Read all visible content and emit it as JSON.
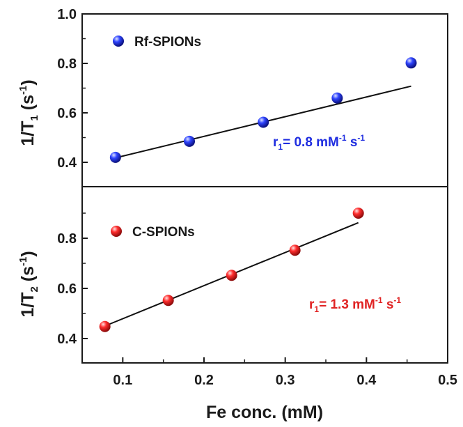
{
  "chart_data": [
    {
      "type": "scatter",
      "panel": "top",
      "xlim": [
        0.05,
        0.5
      ],
      "ylim": [
        0.35,
        1.0
      ],
      "yticks": [
        "0.4",
        "0.6",
        "0.8",
        "1.0"
      ],
      "yticks_val": [
        0.4,
        0.6,
        0.8,
        1.0
      ],
      "ylabel_main": "1/T",
      "ylabel_sub": "1",
      "ylabel_unit": " (s",
      "ylabel_exp": "-1",
      "ylabel_close": ")",
      "series": [
        {
          "name": "Rf-SPIONs",
          "color": "#1f2de0",
          "x": [
            0.091,
            0.182,
            0.273,
            0.364,
            0.455
          ],
          "y": [
            0.42,
            0.485,
            0.562,
            0.66,
            0.802
          ]
        }
      ],
      "fit": {
        "x": [
          0.091,
          0.455
        ],
        "y": [
          0.418,
          0.708
        ]
      },
      "annotation": {
        "r": "r",
        "sub": "1",
        "value": "= 0.8 mM",
        "exp": "-1",
        "unit": " s",
        "exp2": "-1",
        "color": "#1f2de0"
      }
    },
    {
      "type": "scatter",
      "panel": "bottom",
      "xlim": [
        0.05,
        0.5
      ],
      "ylim": [
        0.35,
        1.0
      ],
      "yticks": [
        "0.4",
        "0.6",
        "0.8"
      ],
      "yticks_val": [
        0.4,
        0.6,
        0.8
      ],
      "xticks": [
        "0.1",
        "0.2",
        "0.3",
        "0.4",
        "0.5"
      ],
      "xticks_val": [
        0.1,
        0.2,
        0.3,
        0.4,
        0.5
      ],
      "xlabel": "Fe conc. (mM)",
      "ylabel_main": "1/T",
      "ylabel_sub": "2",
      "ylabel_unit": " (s",
      "ylabel_exp": "-1",
      "ylabel_close": ")",
      "series": [
        {
          "name": "C-SPIONs",
          "color": "#e02222",
          "x": [
            0.078,
            0.156,
            0.234,
            0.312,
            0.39
          ],
          "y": [
            0.448,
            0.552,
            0.652,
            0.752,
            0.9
          ]
        }
      ],
      "fit": {
        "x": [
          0.078,
          0.39
        ],
        "y": [
          0.45,
          0.862
        ]
      },
      "annotation": {
        "r": "r",
        "sub": "1",
        "value": "= 1.3 mM",
        "exp": "-1",
        "unit": " s",
        "exp2": "-1",
        "color": "#e02222"
      }
    }
  ]
}
